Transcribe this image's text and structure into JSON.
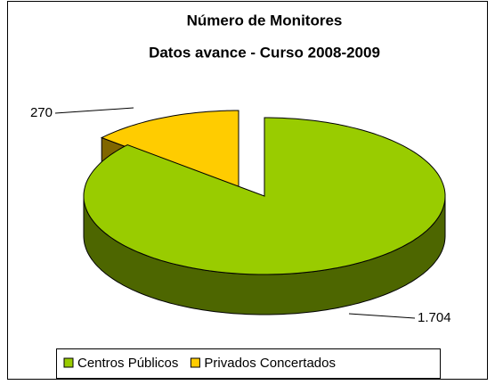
{
  "chart_data": {
    "type": "pie3d",
    "title": "Número de Monitores",
    "subtitle": "Datos avance - Curso 2008-2009",
    "categories": [
      "Centros Públicos",
      "Privados Concertados"
    ],
    "values": [
      1704,
      270
    ],
    "value_labels": [
      "1.704",
      "270"
    ],
    "colors": [
      "#99cc00",
      "#ffcc00"
    ],
    "legend": "bottom"
  }
}
